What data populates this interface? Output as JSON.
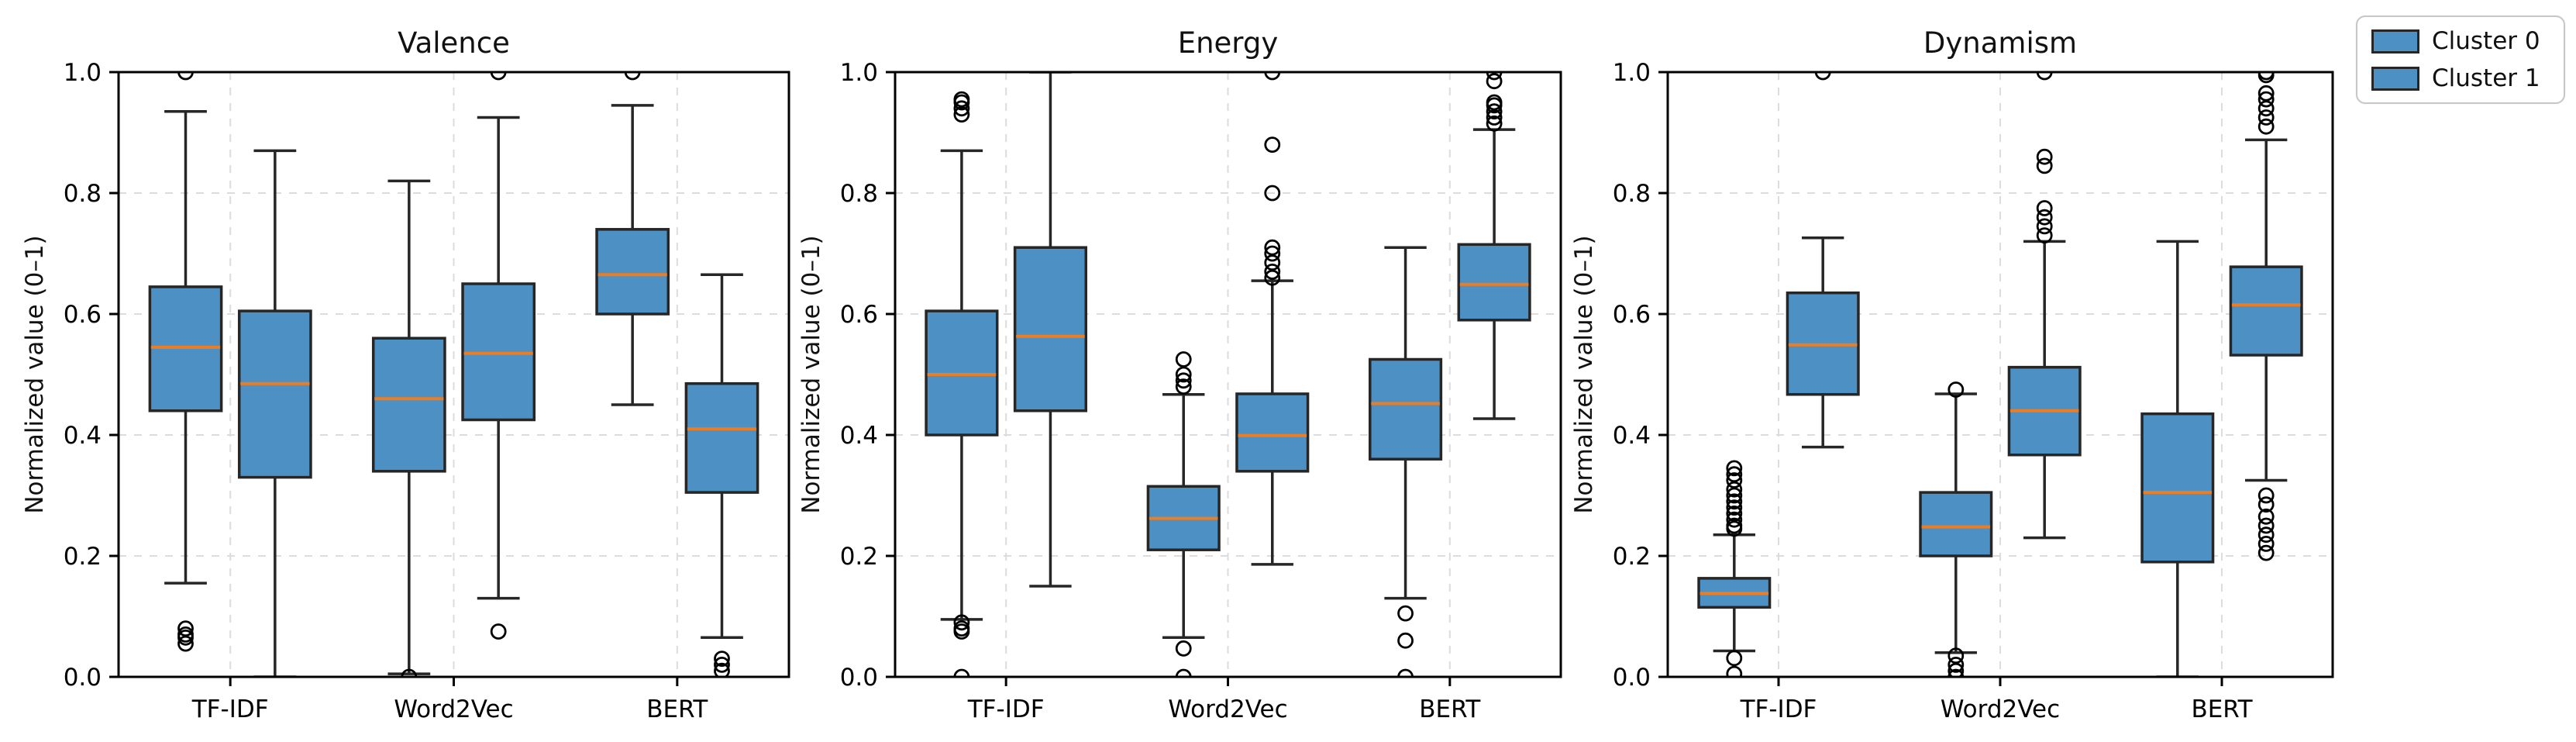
{
  "figure": {
    "background": "#ffffff"
  },
  "style": {
    "box_fill": "#4C90C4",
    "box_edge": "#262626",
    "median_color": "#EC7D22",
    "grid_color": "#DCDCDC",
    "spine_color": "#000000",
    "tick_label_color": "#000000"
  },
  "legend": {
    "items": [
      {
        "label": "Cluster 0",
        "color": "#4C90C4"
      },
      {
        "label": "Cluster 1",
        "color": "#4C90C4"
      }
    ]
  },
  "chart_data": [
    {
      "type": "boxplot",
      "title": "Valence",
      "ylabel": "Normalized value (0–1)",
      "categories": [
        "TF-IDF",
        "Word2Vec",
        "BERT"
      ],
      "ylim": [
        0.0,
        1.0
      ],
      "yticks": [
        "0.0",
        "0.2",
        "0.4",
        "0.6",
        "0.8",
        "1.0"
      ],
      "grid": true,
      "series": [
        {
          "name": "Cluster 0",
          "boxes": [
            {
              "whislo": 0.155,
              "q1": 0.44,
              "med": 0.545,
              "q3": 0.645,
              "whishi": 0.935,
              "fliers": [
                1.0,
                0.08,
                0.07,
                0.065,
                0.055
              ]
            },
            {
              "whislo": 0.005,
              "q1": 0.34,
              "med": 0.46,
              "q3": 0.56,
              "whishi": 0.82,
              "fliers": [
                0.0
              ]
            },
            {
              "whislo": 0.45,
              "q1": 0.6,
              "med": 0.665,
              "q3": 0.74,
              "whishi": 0.945,
              "fliers": [
                1.0
              ]
            }
          ]
        },
        {
          "name": "Cluster 1",
          "boxes": [
            {
              "whislo": 0.0,
              "q1": 0.33,
              "med": 0.485,
              "q3": 0.605,
              "whishi": 0.87,
              "fliers": []
            },
            {
              "whislo": 0.13,
              "q1": 0.425,
              "med": 0.535,
              "q3": 0.65,
              "whishi": 0.925,
              "fliers": [
                1.0,
                0.075
              ]
            },
            {
              "whislo": 0.065,
              "q1": 0.305,
              "med": 0.41,
              "q3": 0.485,
              "whishi": 0.665,
              "fliers": [
                0.03,
                0.02,
                0.01
              ]
            }
          ]
        }
      ]
    },
    {
      "type": "boxplot",
      "title": "Energy",
      "ylabel": "Normalized value (0–1)",
      "categories": [
        "TF-IDF",
        "Word2Vec",
        "BERT"
      ],
      "ylim": [
        0.0,
        1.0
      ],
      "yticks": [
        "0.0",
        "0.2",
        "0.4",
        "0.6",
        "0.8",
        "1.0"
      ],
      "grid": true,
      "series": [
        {
          "name": "Cluster 0",
          "boxes": [
            {
              "whislo": 0.095,
              "q1": 0.4,
              "med": 0.5,
              "q3": 0.605,
              "whishi": 0.87,
              "fliers": [
                0.955,
                0.95,
                0.94,
                0.93,
                0.09,
                0.08,
                0.075,
                0.0
              ]
            },
            {
              "whislo": 0.065,
              "q1": 0.21,
              "med": 0.262,
              "q3": 0.315,
              "whishi": 0.467,
              "fliers": [
                0.525,
                0.5,
                0.49,
                0.48,
                0.047,
                0.0
              ]
            },
            {
              "whislo": 0.13,
              "q1": 0.36,
              "med": 0.452,
              "q3": 0.525,
              "whishi": 0.71,
              "fliers": [
                0.105,
                0.06,
                0.0
              ]
            }
          ]
        },
        {
          "name": "Cluster 1",
          "boxes": [
            {
              "whislo": 0.15,
              "q1": 0.44,
              "med": 0.563,
              "q3": 0.71,
              "whishi": 1.0,
              "fliers": []
            },
            {
              "whislo": 0.186,
              "q1": 0.34,
              "med": 0.399,
              "q3": 0.468,
              "whishi": 0.655,
              "fliers": [
                1.0,
                0.88,
                0.8,
                0.71,
                0.7,
                0.685,
                0.67,
                0.66
              ]
            },
            {
              "whislo": 0.427,
              "q1": 0.59,
              "med": 0.649,
              "q3": 0.715,
              "whishi": 0.905,
              "fliers": [
                1.0,
                0.985,
                0.95,
                0.945,
                0.935,
                0.925,
                0.915
              ]
            }
          ]
        }
      ]
    },
    {
      "type": "boxplot",
      "title": "Dynamism",
      "ylabel": "Normalized value (0–1)",
      "categories": [
        "TF-IDF",
        "Word2Vec",
        "BERT"
      ],
      "ylim": [
        0.0,
        1.0
      ],
      "yticks": [
        "0.0",
        "0.2",
        "0.4",
        "0.6",
        "0.8",
        "1.0"
      ],
      "grid": true,
      "series": [
        {
          "name": "Cluster 0",
          "boxes": [
            {
              "whislo": 0.043,
              "q1": 0.115,
              "med": 0.138,
              "q3": 0.163,
              "whishi": 0.235,
              "fliers": [
                0.345,
                0.335,
                0.325,
                0.31,
                0.3,
                0.29,
                0.28,
                0.27,
                0.26,
                0.25,
                0.245,
                0.031,
                0.005
              ]
            },
            {
              "whislo": 0.04,
              "q1": 0.2,
              "med": 0.248,
              "q3": 0.305,
              "whishi": 0.468,
              "fliers": [
                0.475,
                0.035,
                0.02,
                0.01,
                0.0
              ]
            },
            {
              "whislo": 0.0,
              "q1": 0.19,
              "med": 0.305,
              "q3": 0.435,
              "whishi": 0.72,
              "fliers": []
            }
          ]
        },
        {
          "name": "Cluster 1",
          "boxes": [
            {
              "whislo": 0.38,
              "q1": 0.467,
              "med": 0.549,
              "q3": 0.635,
              "whishi": 0.726,
              "fliers": [
                1.0
              ]
            },
            {
              "whislo": 0.23,
              "q1": 0.367,
              "med": 0.44,
              "q3": 0.512,
              "whishi": 0.72,
              "fliers": [
                1.0,
                0.86,
                0.845,
                0.775,
                0.76,
                0.745,
                0.73
              ]
            },
            {
              "whislo": 0.325,
              "q1": 0.532,
              "med": 0.615,
              "q3": 0.678,
              "whishi": 0.888,
              "fliers": [
                1.0,
                0.995,
                0.965,
                0.955,
                0.94,
                0.925,
                0.91,
                0.3,
                0.285,
                0.265,
                0.25,
                0.235,
                0.22,
                0.205
              ]
            }
          ]
        }
      ]
    }
  ]
}
